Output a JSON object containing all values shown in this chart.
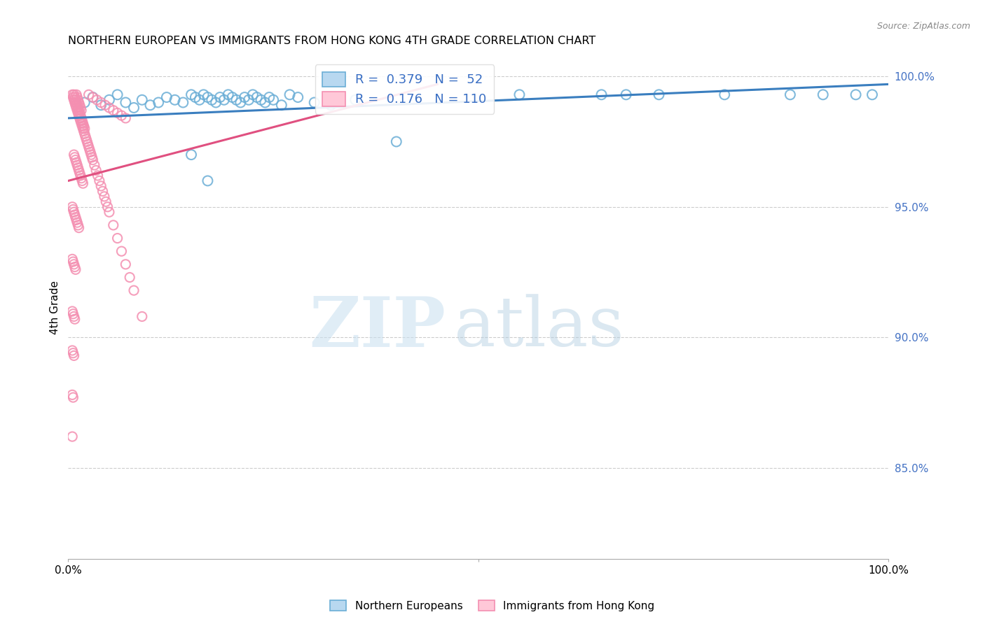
{
  "title": "NORTHERN EUROPEAN VS IMMIGRANTS FROM HONG KONG 4TH GRADE CORRELATION CHART",
  "source": "Source: ZipAtlas.com",
  "ylabel": "4th Grade",
  "ytick_labels": [
    "100.0%",
    "95.0%",
    "90.0%",
    "85.0%"
  ],
  "ytick_values": [
    1.0,
    0.95,
    0.9,
    0.85
  ],
  "xlim": [
    0.0,
    1.0
  ],
  "ylim": [
    0.815,
    1.008
  ],
  "legend_blue_r": "0.379",
  "legend_blue_n": "52",
  "legend_pink_r": "0.176",
  "legend_pink_n": "110",
  "blue_color": "#6baed6",
  "pink_color": "#f48fb1",
  "blue_line_color": "#3a7ebf",
  "pink_line_color": "#e05080",
  "grid_color": "#cccccc",
  "watermark_zip": "ZIP",
  "watermark_atlas": "atlas",
  "watermark_color_zip": "#c8dff0",
  "watermark_color_atlas": "#b0cce0",
  "blue_scatter_x": [
    0.02,
    0.03,
    0.04,
    0.05,
    0.06,
    0.07,
    0.08,
    0.09,
    0.1,
    0.11,
    0.12,
    0.13,
    0.14,
    0.15,
    0.155,
    0.16,
    0.165,
    0.17,
    0.175,
    0.18,
    0.185,
    0.19,
    0.195,
    0.2,
    0.205,
    0.21,
    0.215,
    0.22,
    0.225,
    0.23,
    0.235,
    0.24,
    0.245,
    0.25,
    0.26,
    0.27,
    0.28,
    0.3,
    0.32,
    0.35,
    0.4,
    0.55,
    0.65,
    0.68,
    0.72,
    0.8,
    0.88,
    0.92,
    0.96,
    0.98,
    0.15,
    0.17
  ],
  "blue_scatter_y": [
    0.99,
    0.992,
    0.989,
    0.991,
    0.993,
    0.99,
    0.988,
    0.991,
    0.989,
    0.99,
    0.992,
    0.991,
    0.99,
    0.993,
    0.992,
    0.991,
    0.993,
    0.992,
    0.991,
    0.99,
    0.992,
    0.991,
    0.993,
    0.992,
    0.991,
    0.99,
    0.992,
    0.991,
    0.993,
    0.992,
    0.991,
    0.99,
    0.992,
    0.991,
    0.989,
    0.993,
    0.992,
    0.99,
    0.989,
    0.991,
    0.975,
    0.993,
    0.993,
    0.993,
    0.993,
    0.993,
    0.993,
    0.993,
    0.993,
    0.993,
    0.97,
    0.96
  ],
  "pink_scatter_x": [
    0.005,
    0.006,
    0.007,
    0.008,
    0.009,
    0.01,
    0.011,
    0.012,
    0.013,
    0.014,
    0.015,
    0.016,
    0.017,
    0.018,
    0.019,
    0.02,
    0.021,
    0.022,
    0.023,
    0.024,
    0.025,
    0.026,
    0.027,
    0.028,
    0.029,
    0.03,
    0.032,
    0.034,
    0.036,
    0.038,
    0.04,
    0.042,
    0.044,
    0.046,
    0.048,
    0.05,
    0.055,
    0.06,
    0.065,
    0.07,
    0.075,
    0.08,
    0.09,
    0.01,
    0.011,
    0.012,
    0.013,
    0.014,
    0.015,
    0.016,
    0.007,
    0.008,
    0.009,
    0.01,
    0.011,
    0.012,
    0.013,
    0.014,
    0.015,
    0.016,
    0.017,
    0.018,
    0.019,
    0.02,
    0.007,
    0.008,
    0.009,
    0.01,
    0.011,
    0.012,
    0.013,
    0.014,
    0.015,
    0.016,
    0.017,
    0.018,
    0.005,
    0.006,
    0.007,
    0.008,
    0.009,
    0.01,
    0.011,
    0.012,
    0.013,
    0.005,
    0.006,
    0.007,
    0.008,
    0.009,
    0.005,
    0.006,
    0.007,
    0.008,
    0.005,
    0.006,
    0.007,
    0.005,
    0.006,
    0.005,
    0.025,
    0.03,
    0.035,
    0.04,
    0.045,
    0.05,
    0.055,
    0.06,
    0.065,
    0.07
  ],
  "pink_scatter_y": [
    0.993,
    0.992,
    0.991,
    0.99,
    0.989,
    0.988,
    0.987,
    0.986,
    0.985,
    0.984,
    0.983,
    0.982,
    0.981,
    0.98,
    0.979,
    0.978,
    0.977,
    0.976,
    0.975,
    0.974,
    0.973,
    0.972,
    0.971,
    0.97,
    0.969,
    0.968,
    0.966,
    0.964,
    0.962,
    0.96,
    0.958,
    0.956,
    0.954,
    0.952,
    0.95,
    0.948,
    0.943,
    0.938,
    0.933,
    0.928,
    0.923,
    0.918,
    0.908,
    0.993,
    0.992,
    0.991,
    0.99,
    0.989,
    0.988,
    0.987,
    0.993,
    0.992,
    0.991,
    0.99,
    0.989,
    0.988,
    0.987,
    0.986,
    0.985,
    0.984,
    0.983,
    0.982,
    0.981,
    0.98,
    0.97,
    0.969,
    0.968,
    0.967,
    0.966,
    0.965,
    0.964,
    0.963,
    0.962,
    0.961,
    0.96,
    0.959,
    0.95,
    0.949,
    0.948,
    0.947,
    0.946,
    0.945,
    0.944,
    0.943,
    0.942,
    0.93,
    0.929,
    0.928,
    0.927,
    0.926,
    0.91,
    0.909,
    0.908,
    0.907,
    0.895,
    0.894,
    0.893,
    0.878,
    0.877,
    0.862,
    0.993,
    0.992,
    0.991,
    0.99,
    0.989,
    0.988,
    0.987,
    0.986,
    0.985,
    0.984
  ],
  "blue_trendline_x": [
    0.0,
    1.0
  ],
  "blue_trendline_y": [
    0.984,
    0.997
  ],
  "pink_trendline_x": [
    0.0,
    0.45
  ],
  "pink_trendline_y": [
    0.96,
    0.997
  ]
}
